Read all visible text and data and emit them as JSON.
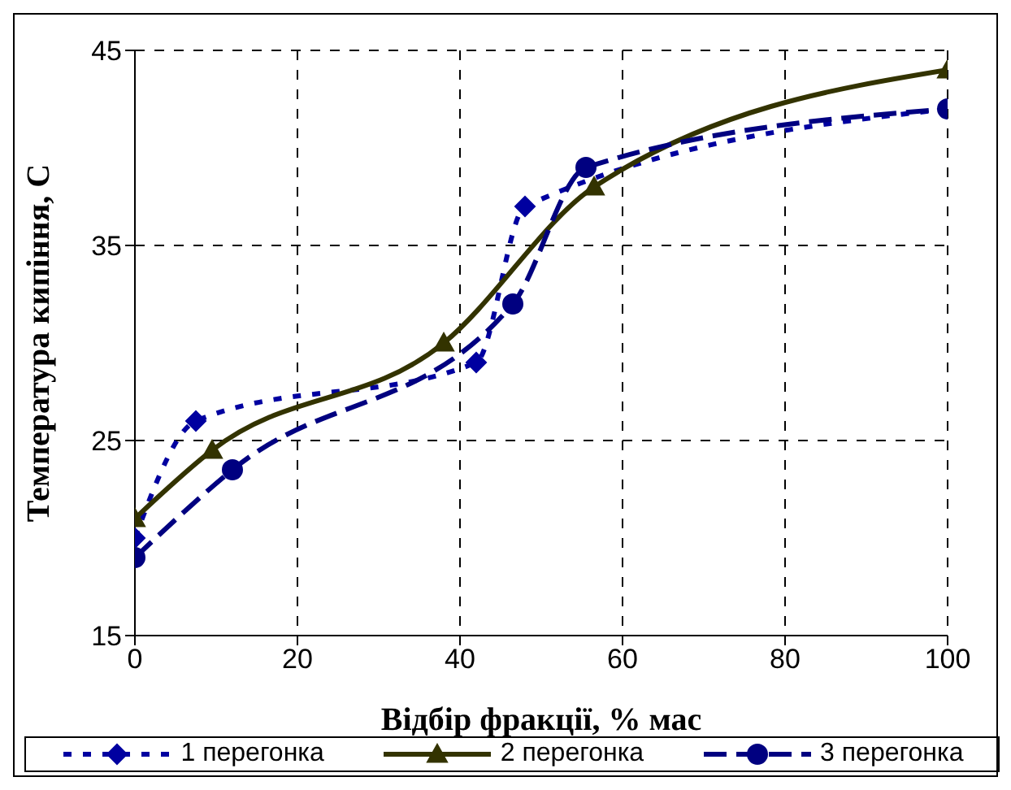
{
  "chart_data": {
    "type": "line",
    "xlabel": "Відбір фракції, % мас",
    "ylabel": "Температура кипіння, С",
    "xlim": [
      0,
      100
    ],
    "xticks": [
      0,
      20,
      40,
      60,
      80,
      100
    ],
    "ylim": [
      15,
      45
    ],
    "yticks": [
      15,
      25,
      35,
      45
    ],
    "grid": true,
    "legend": "bottom",
    "series": [
      {
        "name": "1 перегонка",
        "color": "#0000a0",
        "marker": "diamond",
        "line_style": "dotted",
        "x": [
          0,
          7.5,
          42,
          48,
          100
        ],
        "values": [
          20,
          26,
          29,
          37,
          42
        ]
      },
      {
        "name": "2 перегонка",
        "color": "#333300",
        "marker": "triangle",
        "line_style": "solid",
        "x": [
          0,
          9.5,
          38,
          56.5,
          100
        ],
        "values": [
          21,
          24.5,
          30,
          38,
          44
        ]
      },
      {
        "name": "3 перегонка",
        "color": "#000080",
        "marker": "circle",
        "line_style": "dashed",
        "x": [
          0,
          12,
          46.5,
          55.5,
          100
        ],
        "values": [
          19,
          23.5,
          32,
          39,
          42
        ]
      }
    ]
  }
}
